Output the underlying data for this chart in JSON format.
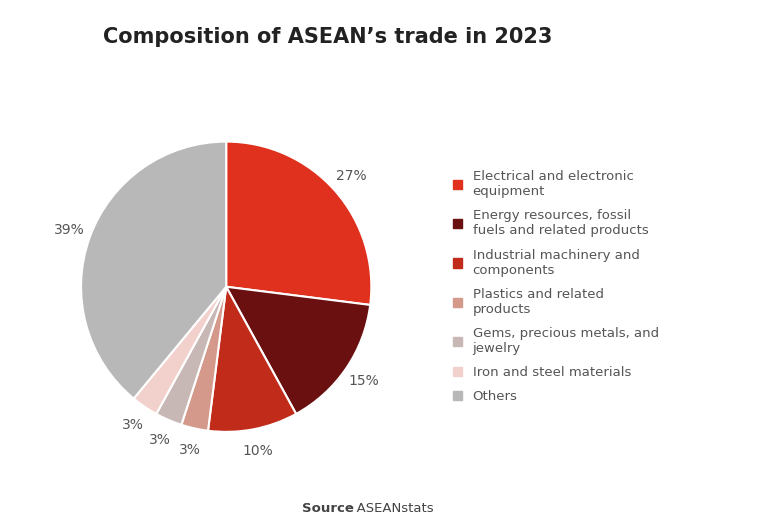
{
  "title": "Composition of ASEAN’s trade in 2023",
  "source_bold": "Source",
  "source_normal": ": ASEANstats",
  "labels": [
    "Electrical and electronic\nequipment",
    "Energy resources, fossil\nfuels and related products",
    "Industrial machinery and\ncomponents",
    "Plastics and related\nproducts",
    "Gems, precious metals, and\njewelry",
    "Iron and steel materials",
    "Others"
  ],
  "values": [
    27,
    15,
    10,
    3,
    3,
    3,
    39
  ],
  "colors": [
    "#e0301e",
    "#6b1010",
    "#c02b1a",
    "#d4998a",
    "#c8b8b5",
    "#f2d0cc",
    "#b8b8b8"
  ],
  "pct_labels": [
    "27%",
    "15%",
    "10%",
    "3%",
    "3%",
    "3%",
    "39%"
  ],
  "startangle": 90,
  "background_color": "#ffffff",
  "title_fontsize": 15,
  "legend_fontsize": 9.5,
  "pct_fontsize": 10,
  "text_color": "#555555"
}
